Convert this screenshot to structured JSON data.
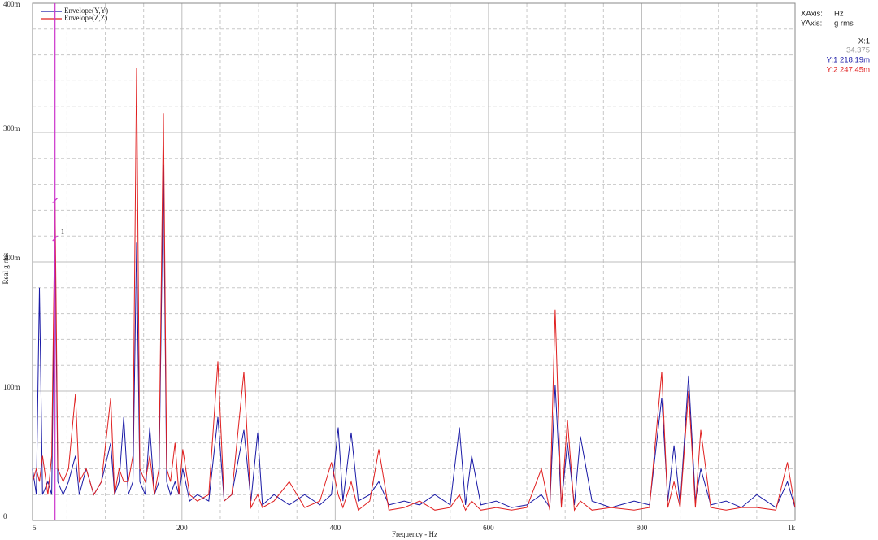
{
  "chart_data": {
    "type": "line",
    "xlabel": "Frequency - Hz",
    "ylabel": "Real g rms",
    "xlim": [
      5,
      1000
    ],
    "xticks": [
      5,
      200,
      400,
      600,
      800,
      {
        "value": 1000,
        "label": "1k"
      }
    ],
    "ylim": [
      0,
      0.4
    ],
    "yticks": [
      0,
      {
        "value": 0.1,
        "label": "100m"
      },
      {
        "value": 0.2,
        "label": "200m"
      },
      {
        "value": 0.3,
        "label": "300m"
      },
      {
        "value": 0.4,
        "label": "400m"
      }
    ],
    "xminor": [
      50,
      100,
      150,
      250,
      300,
      350,
      450,
      500,
      550,
      650,
      700,
      750,
      850,
      900,
      950
    ],
    "yminor": [
      0.02,
      0.04,
      0.06,
      0.08,
      0.12,
      0.14,
      0.16,
      0.18,
      0.22,
      0.24,
      0.26,
      0.28,
      0.32,
      0.34,
      0.36,
      0.38
    ],
    "grid": true,
    "x": [
      5,
      10,
      14,
      18,
      25,
      30,
      34.375,
      38,
      45,
      52,
      61,
      66,
      75,
      85,
      95,
      107,
      112,
      118,
      124,
      130,
      136,
      140.8,
      145,
      152,
      158,
      164,
      170,
      175.8,
      180,
      185,
      191,
      196,
      201,
      210,
      220,
      235,
      246.9,
      255,
      265,
      280.8,
      290,
      298.8,
      305,
      320,
      340,
      360,
      380,
      395,
      403.9,
      410,
      420.8,
      430,
      445,
      456.9,
      470,
      490,
      510,
      530,
      550,
      562,
      570,
      578,
      590,
      610,
      630,
      650,
      669,
      680,
      687,
      695,
      703,
      712,
      720,
      735,
      760,
      790,
      810,
      826,
      834,
      842,
      850,
      861,
      870,
      877,
      890,
      910,
      930,
      950,
      975,
      990,
      1000
    ],
    "series": [
      {
        "name": "Envelope(Y,Y)",
        "color": "#1a1aa6",
        "values": [
          0.04,
          0.02,
          0.18,
          0.02,
          0.03,
          0.02,
          0.218,
          0.03,
          0.02,
          0.03,
          0.05,
          0.02,
          0.04,
          0.02,
          0.03,
          0.06,
          0.02,
          0.03,
          0.08,
          0.02,
          0.03,
          0.215,
          0.03,
          0.02,
          0.072,
          0.02,
          0.03,
          0.275,
          0.03,
          0.02,
          0.03,
          0.02,
          0.04,
          0.015,
          0.02,
          0.015,
          0.08,
          0.015,
          0.02,
          0.07,
          0.015,
          0.068,
          0.012,
          0.02,
          0.012,
          0.02,
          0.012,
          0.02,
          0.072,
          0.015,
          0.068,
          0.015,
          0.02,
          0.03,
          0.012,
          0.015,
          0.012,
          0.02,
          0.012,
          0.072,
          0.012,
          0.05,
          0.012,
          0.015,
          0.01,
          0.012,
          0.02,
          0.01,
          0.105,
          0.012,
          0.06,
          0.012,
          0.065,
          0.015,
          0.01,
          0.015,
          0.012,
          0.095,
          0.015,
          0.058,
          0.012,
          0.112,
          0.015,
          0.04,
          0.012,
          0.015,
          0.01,
          0.02,
          0.01,
          0.03,
          0.01
        ]
      },
      {
        "name": "Envelope(Z,Z)",
        "color": "#e02020",
        "values": [
          0.03,
          0.04,
          0.03,
          0.05,
          0.02,
          0.05,
          0.247,
          0.04,
          0.03,
          0.04,
          0.098,
          0.03,
          0.04,
          0.02,
          0.03,
          0.095,
          0.02,
          0.04,
          0.03,
          0.03,
          0.05,
          0.35,
          0.04,
          0.03,
          0.05,
          0.02,
          0.04,
          0.315,
          0.04,
          0.03,
          0.06,
          0.02,
          0.055,
          0.02,
          0.015,
          0.02,
          0.123,
          0.015,
          0.02,
          0.115,
          0.01,
          0.02,
          0.01,
          0.015,
          0.03,
          0.01,
          0.015,
          0.045,
          0.02,
          0.01,
          0.03,
          0.008,
          0.015,
          0.055,
          0.008,
          0.01,
          0.015,
          0.008,
          0.01,
          0.02,
          0.008,
          0.015,
          0.008,
          0.01,
          0.008,
          0.01,
          0.04,
          0.008,
          0.163,
          0.01,
          0.078,
          0.008,
          0.015,
          0.008,
          0.01,
          0.008,
          0.01,
          0.115,
          0.01,
          0.03,
          0.01,
          0.1,
          0.01,
          0.07,
          0.01,
          0.008,
          0.01,
          0.01,
          0.008,
          0.045,
          0.01
        ]
      }
    ],
    "cursor": {
      "name": "X:1",
      "x": 34.375,
      "y": [
        0.21819,
        0.24745
      ],
      "labels": [
        "Y:1 218.19m",
        "Y:2 247.45m"
      ],
      "marker": "1",
      "color": "#cc33cc"
    },
    "info": {
      "xaxis": "XAxis:",
      "xunit": "Hz",
      "yaxis": "YAxis:",
      "yunit": "g rms"
    }
  }
}
